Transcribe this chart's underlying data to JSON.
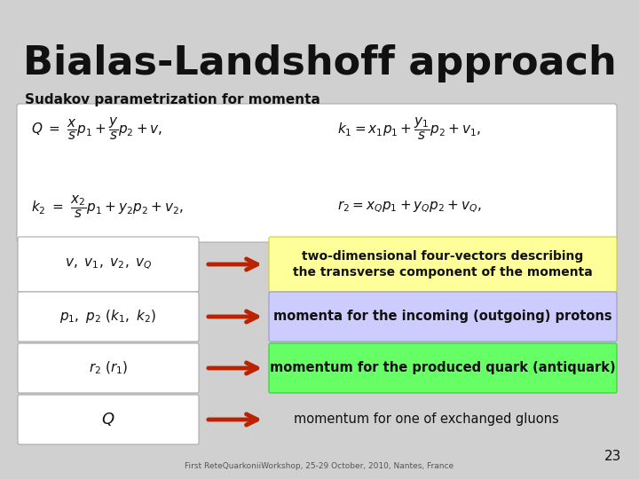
{
  "title": "Bialas-Landshoff approach",
  "subtitle": "Sudakov parametrization for momenta",
  "background_color": "#d0d0d0",
  "formula_box_color": "#ffffff",
  "row1": {
    "arrow_color": "#bb2200",
    "box_color": "#ffff99",
    "box_border": "#cccc44",
    "text": "two-dimensional four-vectors describing\nthe transverse component of the momenta"
  },
  "row2": {
    "arrow_color": "#bb2200",
    "box_color": "#ccccff",
    "box_border": "#9999cc",
    "text": "momenta for the incoming (outgoing) protons"
  },
  "row3": {
    "arrow_color": "#bb2200",
    "box_color": "#66ff66",
    "box_border": "#33cc33",
    "text": "momentum for the produced quark (antiquark)"
  },
  "row4": {
    "arrow_color": "#bb2200",
    "box_color": "#d0d0d0",
    "box_border": "#d0d0d0",
    "text": "momentum for one of exchanged gluons"
  },
  "page_number": "23",
  "footer": "First ReteQuarkoniiWorkshop, 25-29 October, 2010, Nantes, France",
  "title_fontsize": 32,
  "subtitle_fontsize": 11,
  "formula_fontsize": 11,
  "label_fontsize": 11,
  "text_fontsize": 10.5
}
